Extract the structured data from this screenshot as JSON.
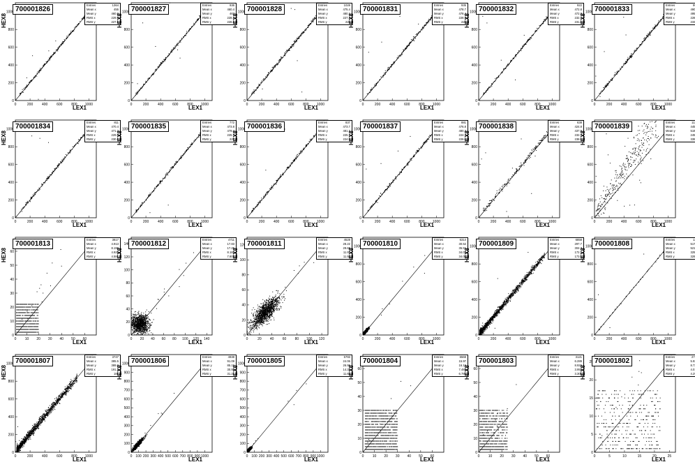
{
  "chart_data": [
    {
      "type": "scatter",
      "title": "700001826",
      "xlabel": "LEX1",
      "ylabel": "HEX8",
      "xlim": [
        0,
        1100
      ],
      "ylim": [
        0,
        1100
      ],
      "xticks": [
        0,
        200,
        400,
        600,
        800,
        1000
      ],
      "yticks": [
        0,
        200,
        400,
        600,
        800,
        1000
      ],
      "stats": {
        "Entries": "1364",
        "Mean x": "455",
        "Mean y": "460.8",
        "RMS x": "229.9",
        "RMS y": "227.8"
      },
      "trend": {
        "slope": 1.0,
        "intercept": 5,
        "x0": 60,
        "x1": 1060,
        "spread": 8,
        "n": 260,
        "outliers": 6
      }
    },
    {
      "type": "scatter",
      "title": "700001827",
      "xlabel": "LEX1",
      "ylabel": "HEX8",
      "xlim": [
        0,
        1100
      ],
      "ylim": [
        0,
        1100
      ],
      "xticks": [
        0,
        200,
        400,
        600,
        800,
        1000
      ],
      "yticks": [
        0,
        200,
        400,
        600,
        800,
        1000
      ],
      "stats": {
        "Entries": "936",
        "Mean x": "460.4",
        "Mean y": "467",
        "RMS x": "228.1",
        "RMS y": "226.6"
      },
      "trend": {
        "slope": 1.0,
        "intercept": 5,
        "x0": 60,
        "x1": 1060,
        "spread": 8,
        "n": 230,
        "outliers": 6
      }
    },
    {
      "type": "scatter",
      "title": "700001828",
      "xlabel": "LEX1",
      "ylabel": "HEX8",
      "xlim": [
        0,
        1100
      ],
      "ylim": [
        0,
        1100
      ],
      "xticks": [
        0,
        200,
        400,
        600,
        800,
        1000
      ],
      "yticks": [
        0,
        200,
        400,
        600,
        800,
        1000
      ],
      "stats": {
        "Entries": "1028",
        "Mean x": "475.4",
        "Mean y": "480.1",
        "RMS x": "227.2",
        "RMS y": "226"
      },
      "trend": {
        "slope": 1.0,
        "intercept": 5,
        "x0": 60,
        "x1": 1060,
        "spread": 10,
        "n": 260,
        "outliers": 5
      }
    },
    {
      "type": "scatter",
      "title": "700001831",
      "xlabel": "LEX1",
      "ylabel": "HEX8",
      "xlim": [
        0,
        1100
      ],
      "ylim": [
        0,
        1100
      ],
      "xticks": [
        0,
        200,
        400,
        600,
        800,
        1000
      ],
      "yticks": [
        0,
        200,
        400,
        600,
        800,
        1000
      ],
      "stats": {
        "Entries": "935",
        "Mean x": "478.7",
        "Mean y": "478.4",
        "RMS x": "228.5",
        "RMS y": "228"
      },
      "trend": {
        "slope": 1.0,
        "intercept": 3,
        "x0": 60,
        "x1": 1060,
        "spread": 9,
        "n": 240,
        "outliers": 5
      }
    },
    {
      "type": "scatter",
      "title": "700001832",
      "xlabel": "LEX1",
      "ylabel": "HEX8",
      "xlim": [
        0,
        1100
      ],
      "ylim": [
        0,
        1100
      ],
      "xticks": [
        0,
        200,
        400,
        600,
        800,
        1000
      ],
      "yticks": [
        0,
        200,
        400,
        600,
        800,
        1000
      ],
      "stats": {
        "Entries": "922",
        "Mean x": "472.8",
        "Mean y": "472.8",
        "RMS x": "232.1",
        "RMS y": "231.8"
      },
      "trend": {
        "slope": 1.0,
        "intercept": 3,
        "x0": 60,
        "x1": 1060,
        "spread": 8,
        "n": 230,
        "outliers": 5
      }
    },
    {
      "type": "scatter",
      "title": "700001833",
      "xlabel": "LEX1",
      "ylabel": "HEX8",
      "xlim": [
        0,
        1100
      ],
      "ylim": [
        0,
        1100
      ],
      "xticks": [
        0,
        200,
        400,
        600,
        800,
        1000
      ],
      "yticks": [
        0,
        200,
        400,
        600,
        800,
        1000
      ],
      "stats": {
        "Entries": "993",
        "Mean x": "490.6",
        "Mean y": "495.7",
        "RMS x": "228.9",
        "RMS y": "233.8"
      },
      "trend": {
        "slope": 1.0,
        "intercept": 5,
        "x0": 60,
        "x1": 1060,
        "spread": 9,
        "n": 250,
        "outliers": 5
      }
    },
    {
      "type": "scatter",
      "title": "700001834",
      "xlabel": "LEX1",
      "ylabel": "HEX8",
      "xlim": [
        0,
        1100
      ],
      "ylim": [
        0,
        1100
      ],
      "xticks": [
        0,
        200,
        400,
        600,
        800,
        1000
      ],
      "yticks": [
        0,
        200,
        400,
        600,
        800,
        1000
      ],
      "stats": {
        "Entries": "811",
        "Mean x": "470.4",
        "Mean y": "471.2",
        "RMS x": "229.8",
        "RMS y": "230.3"
      },
      "trend": {
        "slope": 1.0,
        "intercept": 3,
        "x0": 60,
        "x1": 1060,
        "spread": 9,
        "n": 220,
        "outliers": 4
      }
    },
    {
      "type": "scatter",
      "title": "700001835",
      "xlabel": "LEX1",
      "ylabel": "HEX8",
      "xlim": [
        0,
        1100
      ],
      "ylim": [
        0,
        1100
      ],
      "xticks": [
        0,
        200,
        400,
        600,
        800,
        1000
      ],
      "yticks": [
        0,
        200,
        400,
        600,
        800,
        1000
      ],
      "stats": {
        "Entries": "772",
        "Mean x": "473.8",
        "Mean y": "479.4",
        "RMS x": "225.7",
        "RMS y": "227"
      },
      "trend": {
        "slope": 1.0,
        "intercept": 5,
        "x0": 60,
        "x1": 1060,
        "spread": 9,
        "n": 220,
        "outliers": 5
      }
    },
    {
      "type": "scatter",
      "title": "700001836",
      "xlabel": "LEX1",
      "ylabel": "HEX8",
      "xlim": [
        0,
        1100
      ],
      "ylim": [
        0,
        1100
      ],
      "xticks": [
        0,
        200,
        400,
        600,
        800,
        1000
      ],
      "yticks": [
        0,
        200,
        400,
        600,
        800,
        1000
      ],
      "stats": {
        "Entries": "837",
        "Mean x": "473.7",
        "Mean y": "481.1",
        "RMS x": "225.1",
        "RMS y": "224.9"
      },
      "trend": {
        "slope": 1.0,
        "intercept": 6,
        "x0": 60,
        "x1": 1060,
        "spread": 9,
        "n": 220,
        "outliers": 4
      }
    },
    {
      "type": "scatter",
      "title": "700001837",
      "xlabel": "LEX1",
      "ylabel": "HEX8",
      "xlim": [
        0,
        1100
      ],
      "ylim": [
        0,
        1100
      ],
      "xticks": [
        0,
        200,
        400,
        600,
        800,
        1000
      ],
      "yticks": [
        0,
        200,
        400,
        600,
        800,
        1000
      ],
      "stats": {
        "Entries": "881",
        "Mean x": "476.8",
        "Mean y": "480.2",
        "RMS x": "224.3",
        "RMS y": "226.6"
      },
      "trend": {
        "slope": 1.0,
        "intercept": 3,
        "x0": 60,
        "x1": 1060,
        "spread": 9,
        "n": 230,
        "outliers": 4
      }
    },
    {
      "type": "scatter",
      "title": "700001838",
      "xlabel": "LEX1",
      "ylabel": "HEX8",
      "xlim": [
        0,
        1100
      ],
      "ylim": [
        0,
        1100
      ],
      "xticks": [
        0,
        200,
        400,
        600,
        800,
        1000
      ],
      "yticks": [
        0,
        200,
        400,
        600,
        800,
        1000
      ],
      "stats": {
        "Entries": "638",
        "Mean x": "424.8",
        "Mean y": "437.5",
        "RMS x": "232.7",
        "RMS y": "238.8"
      },
      "trend": {
        "slope": 1.0,
        "intercept": 10,
        "x0": 60,
        "x1": 960,
        "spread": 16,
        "n": 200,
        "outliers": 8
      }
    },
    {
      "type": "scatter",
      "title": "700001839",
      "xlabel": "LEX1",
      "ylabel": "HEX8",
      "xlim": [
        0,
        1100
      ],
      "ylim": [
        0,
        1100
      ],
      "xticks": [
        0,
        200,
        400,
        600,
        800,
        1000
      ],
      "yticks": [
        0,
        200,
        400,
        600,
        800,
        1000
      ],
      "stats": {
        "Entries": "1125",
        "Mean x": "445.8",
        "Mean y": "519.8",
        "RMS x": "245.7",
        "RMS y": "339.3"
      },
      "trend": {
        "slope": 1.3,
        "intercept": 20,
        "x0": 20,
        "x1": 880,
        "spread": 90,
        "n": 340,
        "outliers": 20
      }
    },
    {
      "type": "scatter",
      "title": "700001813",
      "xlabel": "LEX1",
      "ylabel": "HEX8",
      "xlim": [
        0,
        70
      ],
      "ylim": [
        0,
        70
      ],
      "xticks": [
        0,
        10,
        20,
        30,
        40,
        50,
        60
      ],
      "yticks": [
        0,
        10,
        20,
        30,
        40,
        50,
        60
      ],
      "stats": {
        "Entries": "3817",
        "Mean x": "4.913",
        "Mean y": "8.198",
        "RMS x": "4.929",
        "RMS y": "4.581"
      },
      "cluster": {
        "x0": 1,
        "x1": 20,
        "levels": [
          2,
          4,
          6,
          8,
          10,
          12,
          14,
          16,
          18,
          20,
          22
        ],
        "n": 900,
        "outliers": 14
      }
    },
    {
      "type": "scatter",
      "title": "700001812",
      "xlabel": "LEX1",
      "ylabel": "HEX8",
      "xlim": [
        0,
        150
      ],
      "ylim": [
        0,
        150
      ],
      "xticks": [
        0,
        20,
        40,
        60,
        80,
        100,
        120,
        140
      ],
      "yticks": [
        0,
        20,
        40,
        60,
        80,
        100,
        120,
        140
      ],
      "stats": {
        "Entries": "4711",
        "Mean x": "17.83",
        "Mean y": "17.25",
        "RMS x": "8.182",
        "RMS y": "7.803"
      },
      "blob": {
        "cx": 16,
        "cy": 17,
        "sx": 8,
        "sy": 7,
        "n": 1100,
        "outliers": 14
      }
    },
    {
      "type": "scatter",
      "title": "700001811",
      "xlabel": "LEX1",
      "ylabel": "HEX8",
      "xlim": [
        0,
        130
      ],
      "ylim": [
        0,
        130
      ],
      "xticks": [
        0,
        20,
        40,
        60,
        80,
        100,
        120
      ],
      "yticks": [
        0,
        20,
        40,
        60,
        80,
        100,
        120
      ],
      "stats": {
        "Entries": "4528",
        "Mean x": "28.22",
        "Mean y": "29.68",
        "RMS x": "11.97",
        "RMS y": "11.58"
      },
      "blob": {
        "cx": 29,
        "cy": 30,
        "sx": 11,
        "sy": 10,
        "corr": 0.75,
        "n": 1300,
        "outliers": 10
      }
    },
    {
      "type": "scatter",
      "title": "700001810",
      "xlabel": "LEX1",
      "ylabel": "HEX8",
      "xlim": [
        0,
        1100
      ],
      "ylim": [
        0,
        1100
      ],
      "xticks": [
        0,
        200,
        400,
        600,
        800,
        1000
      ],
      "yticks": [
        0,
        200,
        400,
        600,
        800,
        1000
      ],
      "stats": {
        "Entries": "6314",
        "Mean x": "30.52",
        "Mean y": "35.51",
        "RMS x": "34.05",
        "RMS y": "34.08"
      },
      "blob": {
        "cx": 30,
        "cy": 33,
        "sx": 22,
        "sy": 20,
        "corr": 0.9,
        "n": 500,
        "outliers": 8
      }
    },
    {
      "type": "scatter",
      "title": "700001809",
      "xlabel": "LEX1",
      "ylabel": "HEX8",
      "xlim": [
        0,
        1100
      ],
      "ylim": [
        0,
        1100
      ],
      "xticks": [
        0,
        200,
        400,
        600,
        800,
        1000
      ],
      "yticks": [
        0,
        200,
        400,
        600,
        800,
        1000
      ],
      "stats": {
        "Entries": "6858",
        "Mean x": "297.7",
        "Mean y": "304.3",
        "RMS x": "172.1",
        "RMS y": "173.9"
      },
      "trend": {
        "slope": 1.0,
        "intercept": 5,
        "x0": 15,
        "x1": 900,
        "spread": 18,
        "n": 1500,
        "outliers": 4,
        "densebias": 2.2
      }
    },
    {
      "type": "scatter",
      "title": "700001808",
      "xlabel": "LEX1",
      "ylabel": "HEX8",
      "xlim": [
        0,
        1100
      ],
      "ylim": [
        0,
        1100
      ],
      "xticks": [
        0,
        200,
        400,
        600,
        800,
        1000
      ],
      "yticks": [
        0,
        200,
        400,
        600,
        800,
        1000
      ],
      "stats": {
        "Entries": "135",
        "Mean x": "517.3",
        "Mean y": "521.1",
        "RMS x": "325.8",
        "RMS y": "329.3"
      },
      "trend": {
        "slope": 1.0,
        "intercept": 0,
        "x0": 20,
        "x1": 1080,
        "spread": 5,
        "n": 50,
        "outliers": 3
      }
    },
    {
      "type": "scatter",
      "title": "700001807",
      "xlabel": "LEX1",
      "ylabel": "HEX8",
      "xlim": [
        0,
        1100
      ],
      "ylim": [
        0,
        1100
      ],
      "xticks": [
        0,
        200,
        400,
        600,
        800,
        1000
      ],
      "yticks": [
        0,
        200,
        400,
        600,
        800,
        1000
      ],
      "stats": {
        "Entries": "3747",
        "Mean x": "385.5",
        "Mean y": "389.8",
        "RMS x": "191.3",
        "RMS y": "187"
      },
      "trend": {
        "slope": 1.0,
        "intercept": 5,
        "x0": 20,
        "x1": 840,
        "spread": 22,
        "n": 1400,
        "outliers": 6,
        "densebias": 1.5
      }
    },
    {
      "type": "scatter",
      "title": "700001806",
      "xlabel": "LEX1",
      "ylabel": "HEX8",
      "xlim": [
        0,
        1100
      ],
      "ylim": [
        0,
        1100
      ],
      "xticks": [
        0,
        100,
        200,
        300,
        400,
        500,
        600,
        700,
        800,
        900,
        1000
      ],
      "yticks": [
        0,
        100,
        200,
        300,
        400,
        500,
        600,
        700,
        800,
        900,
        1000
      ],
      "stats": {
        "Entries": "4938",
        "Mean x": "91.09",
        "Mean y": "85.19",
        "RMS x": "30.92",
        "RMS y": "31.21"
      },
      "blob": {
        "cx": 90,
        "cy": 88,
        "sx": 35,
        "sy": 33,
        "corr": 0.93,
        "n": 700,
        "outliers": 6
      }
    },
    {
      "type": "scatter",
      "title": "700001805",
      "xlabel": "LEX1",
      "ylabel": "HEX8",
      "xlim": [
        0,
        1100
      ],
      "ylim": [
        0,
        1100
      ],
      "xticks": [
        0,
        100,
        200,
        300,
        400,
        500,
        600,
        700,
        800,
        900,
        1000
      ],
      "yticks": [
        0,
        100,
        200,
        300,
        400,
        500,
        600,
        700,
        800,
        900,
        1000
      ],
      "stats": {
        "Entries": "5793",
        "Mean x": "24.06",
        "Mean y": "26.96",
        "RMS x": "14.32",
        "RMS y": "11.68"
      },
      "blob": {
        "cx": 26,
        "cy": 27,
        "sx": 18,
        "sy": 16,
        "corr": 0.85,
        "n": 500,
        "outliers": 6
      }
    },
    {
      "type": "scatter",
      "title": "700001804",
      "xlabel": "LEX1",
      "ylabel": "HEX8",
      "xlim": [
        0,
        70
      ],
      "ylim": [
        0,
        70
      ],
      "xticks": [
        0,
        10,
        20,
        30,
        40,
        50,
        60
      ],
      "yticks": [
        0,
        10,
        20,
        30,
        40,
        50,
        60
      ],
      "stats": {
        "Entries": "6568",
        "Mean x": "15.97",
        "Mean y": "16.16",
        "RMS x": "7.485",
        "RMS y": "6.785"
      },
      "cluster": {
        "x0": 2,
        "x1": 30,
        "levels": [
          2,
          4,
          6,
          8,
          10,
          12,
          14,
          16,
          18,
          20,
          22,
          24,
          26,
          28,
          30
        ],
        "n": 1500,
        "outliers": 10
      }
    },
    {
      "type": "scatter",
      "title": "700001803",
      "xlabel": "LEX1",
      "ylabel": "HEX8",
      "xlim": [
        0,
        70
      ],
      "ylim": [
        0,
        70
      ],
      "xticks": [
        0,
        10,
        20,
        30,
        40,
        50,
        60
      ],
      "yticks": [
        0,
        10,
        20,
        30,
        40,
        50,
        60
      ],
      "stats": {
        "Entries": "3121",
        "Mean x": "6.289",
        "Mean y": "8.926",
        "RMS x": "3.951",
        "RMS y": "3.306"
      },
      "cluster": {
        "x0": 1,
        "x1": 25,
        "levels": [
          2,
          4,
          6,
          8,
          10,
          12,
          14,
          16,
          18,
          20,
          22,
          24,
          26,
          28,
          30
        ],
        "n": 900,
        "outliers": 8
      }
    },
    {
      "type": "scatter",
      "title": "700001802",
      "xlabel": "LEX1",
      "ylabel": "HEX8",
      "xlim": [
        0,
        27
      ],
      "ylim": [
        0,
        27
      ],
      "xticks": [
        0,
        5,
        10,
        15,
        20,
        25
      ],
      "yticks": [
        0,
        5,
        10,
        15,
        20,
        25
      ],
      "stats": {
        "Entries": "2711",
        "Mean x": "5.931",
        "Mean y": "8.737",
        "RMS x": "4.018",
        "RMS y": "4.296"
      },
      "cluster": {
        "x0": 0.5,
        "x1": 22,
        "levels": [
          1,
          2,
          3,
          4,
          5,
          6,
          7,
          8,
          9,
          10,
          11,
          12,
          13,
          14,
          15,
          16,
          17
        ],
        "n": 700,
        "outliers": 8,
        "sparse": true
      }
    }
  ]
}
